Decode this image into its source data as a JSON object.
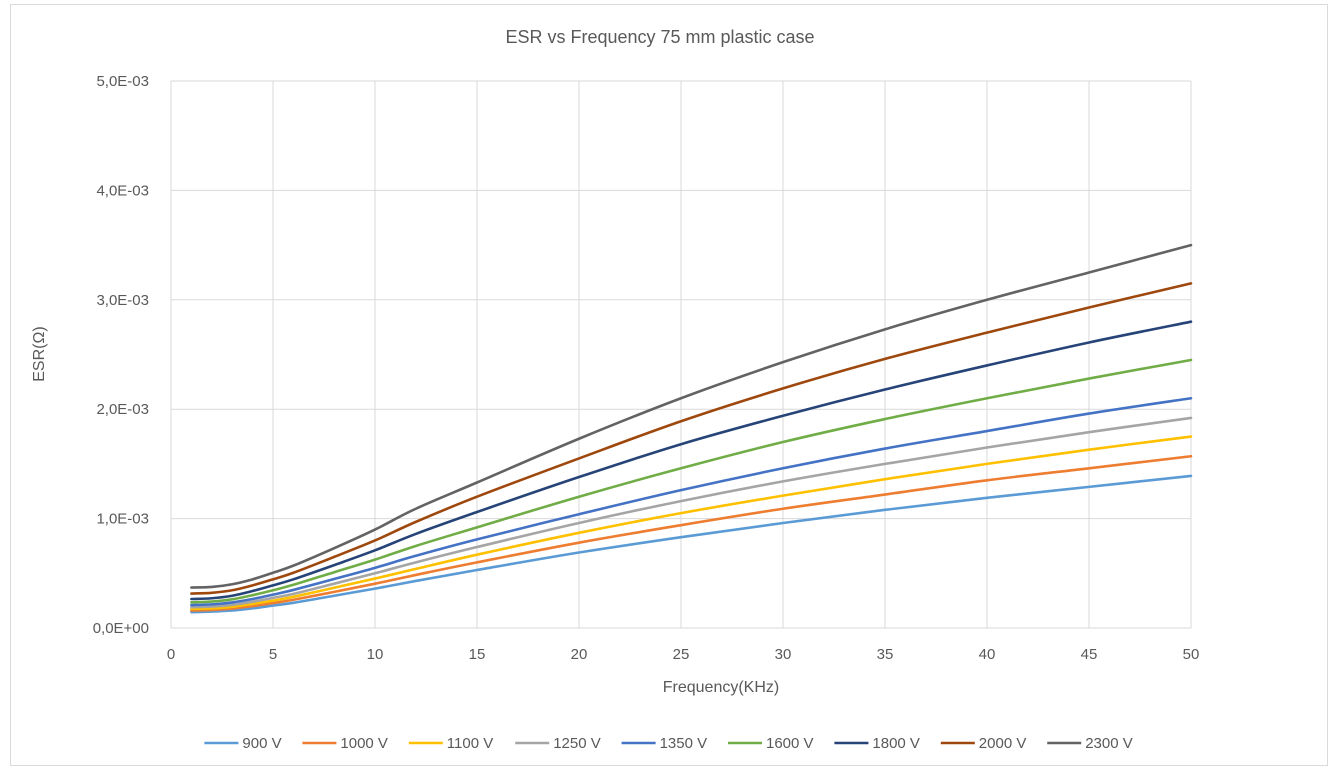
{
  "chart_data": {
    "type": "line",
    "title": "ESR vs Frequency 75 mm plastic case",
    "xlabel": "Frequency(KHz)",
    "ylabel": "ESR(Ω)",
    "xlim": [
      0,
      50
    ],
    "ylim": [
      0,
      0.005
    ],
    "x_ticks": [
      0,
      5,
      10,
      15,
      20,
      25,
      30,
      35,
      40,
      45,
      50
    ],
    "x_tick_labels": [
      "0",
      "5",
      "10",
      "15",
      "20",
      "25",
      "30",
      "35",
      "40",
      "45",
      "50"
    ],
    "y_ticks": [
      0,
      0.001,
      0.002,
      0.003,
      0.004,
      0.005
    ],
    "y_tick_labels": [
      "0,0E+00",
      "1,0E-03",
      "2,0E-03",
      "3,0E-03",
      "4,0E-03",
      "5,0E-03"
    ],
    "grid": true,
    "legend_position": "bottom",
    "x": [
      1,
      2,
      3,
      4,
      5,
      6,
      8,
      10,
      12,
      15,
      20,
      25,
      30,
      35,
      40,
      45,
      50
    ],
    "series": [
      {
        "name": "900 V",
        "color": "#5b9bd5",
        "values": [
          0.000145,
          0.00015,
          0.00016,
          0.00018,
          0.000205,
          0.00023,
          0.000295,
          0.00036,
          0.00043,
          0.00053,
          0.00069,
          0.00083,
          0.00096,
          0.00108,
          0.00119,
          0.00129,
          0.00139
        ]
      },
      {
        "name": "1000 V",
        "color": "#ed7d31",
        "values": [
          0.00016,
          0.000165,
          0.000178,
          0.0002,
          0.000228,
          0.000258,
          0.00033,
          0.000405,
          0.000485,
          0.0006,
          0.00078,
          0.00094,
          0.00109,
          0.00122,
          0.00135,
          0.00146,
          0.00157
        ]
      },
      {
        "name": "1100 V",
        "color": "#ffc000",
        "values": [
          0.000175,
          0.00018,
          0.000194,
          0.00022,
          0.00025,
          0.000285,
          0.000368,
          0.000452,
          0.00054,
          0.00067,
          0.00087,
          0.00105,
          0.00121,
          0.00136,
          0.0015,
          0.00163,
          0.00175
        ]
      },
      {
        "name": "1250 V",
        "color": "#a5a5a5",
        "values": [
          0.00019,
          0.000196,
          0.000212,
          0.00024,
          0.000275,
          0.000312,
          0.000405,
          0.0005,
          0.0006,
          0.00074,
          0.00096,
          0.00116,
          0.00134,
          0.0015,
          0.00165,
          0.00179,
          0.00192
        ]
      },
      {
        "name": "1350 V",
        "color": "#4472c4",
        "values": [
          0.00021,
          0.000216,
          0.000234,
          0.000265,
          0.000305,
          0.000348,
          0.000448,
          0.00055,
          0.00066,
          0.00081,
          0.00104,
          0.00126,
          0.00146,
          0.00164,
          0.0018,
          0.00196,
          0.0021
        ]
      },
      {
        "name": "1600 V",
        "color": "#70ad47",
        "values": [
          0.000235,
          0.000242,
          0.000262,
          0.0003,
          0.000345,
          0.000395,
          0.00051,
          0.000625,
          0.00075,
          0.00092,
          0.0012,
          0.00146,
          0.0017,
          0.00191,
          0.0021,
          0.00228,
          0.00245
        ]
      },
      {
        "name": "1800 V",
        "color": "#264478",
        "values": [
          0.000265,
          0.000272,
          0.000295,
          0.000338,
          0.00039,
          0.000445,
          0.000575,
          0.00071,
          0.00086,
          0.00106,
          0.00138,
          0.00168,
          0.00194,
          0.00218,
          0.0024,
          0.00261,
          0.0028
        ]
      },
      {
        "name": "2000 V",
        "color": "#9e480e",
        "values": [
          0.000315,
          0.000322,
          0.000345,
          0.00039,
          0.000445,
          0.000505,
          0.00065,
          0.0008,
          0.00097,
          0.0012,
          0.00155,
          0.00189,
          0.00219,
          0.00246,
          0.0027,
          0.00293,
          0.00315
        ]
      },
      {
        "name": "2300 V",
        "color": "#636363",
        "values": [
          0.00037,
          0.000375,
          0.0004,
          0.000445,
          0.000505,
          0.00057,
          0.00073,
          0.0009,
          0.00109,
          0.00133,
          0.00173,
          0.0021,
          0.00243,
          0.00273,
          0.003,
          0.00325,
          0.0035
        ]
      }
    ]
  }
}
